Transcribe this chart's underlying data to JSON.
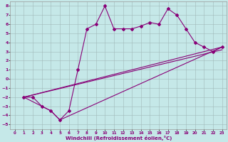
{
  "xlabel": "Windchill (Refroidissement éolien,°C)",
  "xlim": [
    -0.5,
    23.5
  ],
  "ylim": [
    -5.5,
    8.5
  ],
  "xticks": [
    0,
    1,
    2,
    3,
    4,
    5,
    6,
    7,
    8,
    9,
    10,
    11,
    12,
    13,
    14,
    15,
    16,
    17,
    18,
    19,
    20,
    21,
    22,
    23
  ],
  "yticks": [
    -5,
    -4,
    -3,
    -2,
    -1,
    0,
    1,
    2,
    3,
    4,
    5,
    6,
    7,
    8
  ],
  "bg_color": "#c5e8e8",
  "line_color": "#880077",
  "grid_color": "#a0b8b8",
  "line1_x": [
    1,
    2,
    3,
    4,
    5,
    6,
    7,
    8,
    9,
    10,
    11,
    12,
    13,
    14,
    15,
    16,
    17,
    18,
    19,
    20,
    21,
    22,
    23
  ],
  "line1_y": [
    -2,
    -2,
    -3,
    -3.5,
    -4.5,
    -3.5,
    1,
    5.5,
    6,
    8,
    5.5,
    5.5,
    5.5,
    5.8,
    6.2,
    6,
    7.7,
    7,
    5.5,
    4,
    3.5,
    3,
    3.5
  ],
  "line2_x": [
    1,
    23
  ],
  "line2_y": [
    -2,
    3.5
  ],
  "line3_x": [
    1,
    4,
    5,
    23
  ],
  "line3_y": [
    -2,
    -3.5,
    -4.5,
    3.5
  ],
  "line4_x": [
    1,
    23
  ],
  "line4_y": [
    -2,
    3.2
  ]
}
